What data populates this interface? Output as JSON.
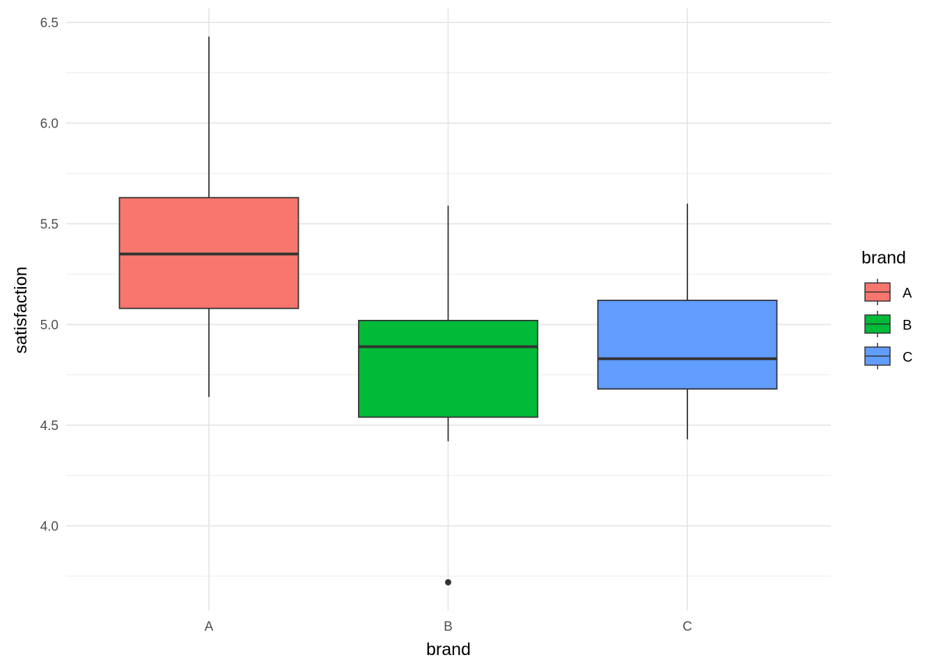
{
  "chart_data": {
    "type": "boxplot",
    "xlabel": "brand",
    "ylabel": "satisfaction",
    "categories": [
      "A",
      "B",
      "C"
    ],
    "ylim": [
      3.58,
      6.57
    ],
    "yticks": [
      "4.0",
      "4.5",
      "5.0",
      "5.5",
      "6.0",
      "6.5"
    ],
    "grid": true,
    "legend": {
      "title": "brand",
      "placement": "right",
      "items": [
        {
          "label": "A",
          "color": "#F8766D"
        },
        {
          "label": "B",
          "color": "#00BA38"
        },
        {
          "label": "C",
          "color": "#619CFF"
        }
      ]
    },
    "boxes": [
      {
        "category": "A",
        "color": "#F8766D",
        "min": 4.64,
        "q1": 5.08,
        "median": 5.35,
        "q3": 5.63,
        "max": 6.43,
        "outliers": []
      },
      {
        "category": "B",
        "color": "#00BA38",
        "min": 4.42,
        "q1": 4.54,
        "median": 4.89,
        "q3": 5.02,
        "max": 5.59,
        "outliers": [
          3.72
        ]
      },
      {
        "category": "C",
        "color": "#619CFF",
        "min": 4.43,
        "q1": 4.68,
        "median": 4.83,
        "q3": 5.12,
        "max": 5.6,
        "outliers": []
      }
    ]
  }
}
